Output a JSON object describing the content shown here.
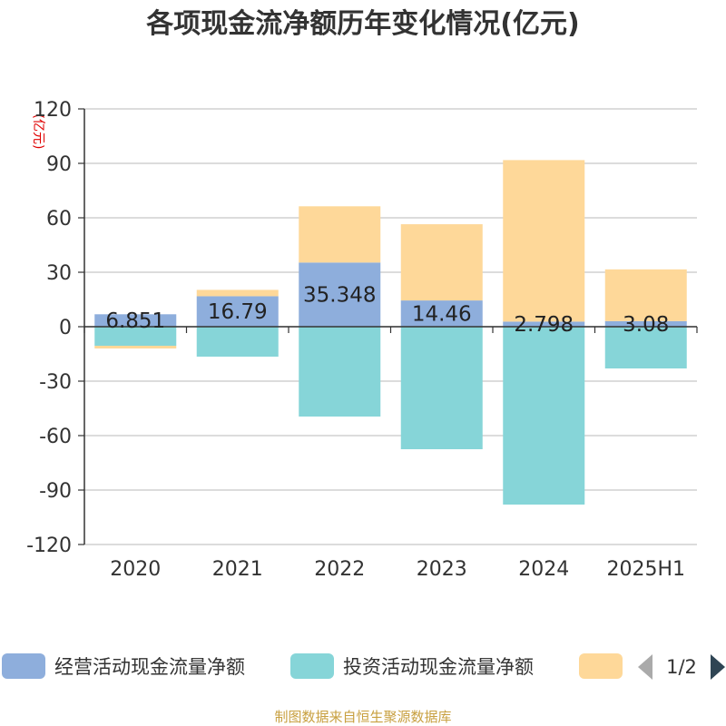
{
  "chart_data": {
    "type": "bar",
    "stacked": true,
    "title": "各项现金流净额历年变化情况(亿元)",
    "ylabel": "(亿元)",
    "xlabel": "",
    "ylim": [
      -120,
      120
    ],
    "yticks": [
      120,
      90,
      60,
      30,
      0,
      -30,
      -60,
      -90,
      -120
    ],
    "grid": true,
    "categories": [
      "2020",
      "2021",
      "2022",
      "2023",
      "2024",
      "2025H1"
    ],
    "series": [
      {
        "name": "经营活动现金流量净额",
        "color": "#8eaedc",
        "values": [
          6.851,
          16.79,
          35.348,
          14.46,
          2.798,
          3.08
        ],
        "labels": [
          "6.851",
          "16.79",
          "35.348",
          "14.46",
          "2.798",
          "3.08"
        ]
      },
      {
        "name": "投资活动现金流量净额",
        "color": "#86d5d8",
        "values": [
          -10.5,
          -16.5,
          -49.5,
          -67.5,
          -98.0,
          -23.0
        ]
      },
      {
        "name": "",
        "color": "#fed899",
        "values": [
          -1.5,
          3.5,
          31.0,
          42.0,
          89.0,
          28.5
        ]
      }
    ],
    "legend": {
      "position": "bottom",
      "page": "1/2"
    },
    "source": "制图数据来自恒生聚源数据库"
  }
}
